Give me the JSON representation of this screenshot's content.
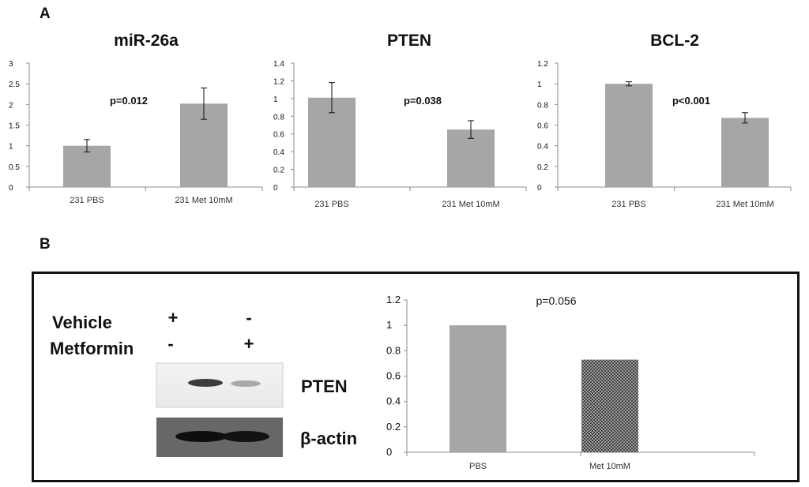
{
  "panels": {
    "a_label": "A",
    "b_label": "B"
  },
  "colors": {
    "bar": "#a6a6a6",
    "axis": "#8c8c8c",
    "text": "#111111",
    "frame": "#111111"
  },
  "western_blot": {
    "rows": [
      {
        "label": "Vehicle",
        "marks": [
          "+",
          "-"
        ]
      },
      {
        "label": "Metformin",
        "marks": [
          "-",
          "+"
        ]
      }
    ],
    "bands": [
      {
        "label": "PTEN",
        "intensity": [
          1.0,
          0.45
        ]
      },
      {
        "label": "β-actin",
        "intensity": [
          1.0,
          1.0
        ]
      }
    ]
  },
  "chart_data": [
    {
      "type": "bar",
      "title": "miR-26a",
      "categories": [
        "231 PBS",
        "231 Met 10mM"
      ],
      "values": [
        1.0,
        2.02
      ],
      "errors": [
        0.15,
        0.38
      ],
      "ylim": [
        0,
        3
      ],
      "yticks": [
        0,
        0.5,
        1,
        1.5,
        2,
        2.5,
        3
      ],
      "ytick_labels": [
        "0",
        "0.5",
        "1",
        "1.5",
        "2",
        "2.5",
        "3"
      ],
      "annotation": "p=0.012"
    },
    {
      "type": "bar",
      "title": "PTEN",
      "categories": [
        "231 PBS",
        "231 Met 10mM"
      ],
      "values": [
        1.01,
        0.65
      ],
      "errors": [
        0.17,
        0.1
      ],
      "ylim": [
        0,
        1.4
      ],
      "yticks": [
        0,
        0.2,
        0.4,
        0.6,
        0.8,
        1,
        1.2,
        1.4
      ],
      "ytick_labels": [
        "0",
        "0.2",
        "0.4",
        "0.6",
        "0.8",
        "1",
        "1.2",
        "1.4"
      ],
      "annotation": "p=0.038"
    },
    {
      "type": "bar",
      "title": "BCL-2",
      "categories": [
        "231 PBS",
        "231 Met 10mM"
      ],
      "values": [
        1.0,
        0.67
      ],
      "errors": [
        0.02,
        0.05
      ],
      "ylim": [
        0,
        1.2
      ],
      "yticks": [
        0,
        0.2,
        0.4,
        0.6,
        0.8,
        1,
        1.2
      ],
      "ytick_labels": [
        "0",
        "0.2",
        "0.4",
        "0.6",
        "0.8",
        "1",
        "1.2"
      ],
      "annotation": "p<0.001"
    },
    {
      "type": "bar",
      "title": "",
      "categories": [
        "PBS",
        "Met 10mM"
      ],
      "values": [
        1.0,
        0.73
      ],
      "ylim": [
        0,
        1.2
      ],
      "yticks": [
        0,
        0.2,
        0.4,
        0.6,
        0.8,
        1,
        1.2
      ],
      "ytick_labels": [
        "0",
        "0.2",
        "0.4",
        "0.6",
        "0.8",
        "1",
        "1.2"
      ],
      "annotation": "p=0.056",
      "fills": [
        "solid",
        "crosshatch"
      ]
    }
  ]
}
